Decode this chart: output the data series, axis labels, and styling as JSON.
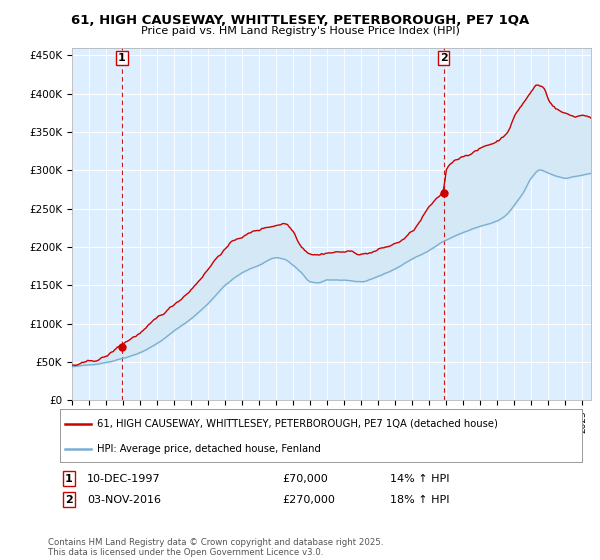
{
  "title": "61, HIGH CAUSEWAY, WHITTLESEY, PETERBOROUGH, PE7 1QA",
  "subtitle": "Price paid vs. HM Land Registry's House Price Index (HPI)",
  "ylabel_ticks": [
    "£0",
    "£50K",
    "£100K",
    "£150K",
    "£200K",
    "£250K",
    "£300K",
    "£350K",
    "£400K",
    "£450K"
  ],
  "ytick_values": [
    0,
    50000,
    100000,
    150000,
    200000,
    250000,
    300000,
    350000,
    400000,
    450000
  ],
  "ylim": [
    0,
    460000
  ],
  "xlim_start": 1995.3,
  "xlim_end": 2025.5,
  "marker1_x": 1997.94,
  "marker1_y": 70000,
  "marker1_label": "1",
  "marker2_x": 2016.84,
  "marker2_y": 270000,
  "marker2_label": "2",
  "sale1_date": "10-DEC-1997",
  "sale1_price": "£70,000",
  "sale1_hpi": "14% ↑ HPI",
  "sale2_date": "03-NOV-2016",
  "sale2_price": "£270,000",
  "sale2_hpi": "18% ↑ HPI",
  "line1_color": "#cc0000",
  "line2_color": "#7aafd4",
  "fill_color": "#d4e8f5",
  "vline_color": "#cc0000",
  "legend_line1": "61, HIGH CAUSEWAY, WHITTLESEY, PETERBOROUGH, PE7 1QA (detached house)",
  "legend_line2": "HPI: Average price, detached house, Fenland",
  "footer": "Contains HM Land Registry data © Crown copyright and database right 2025.\nThis data is licensed under the Open Government Licence v3.0.",
  "background_color": "#ffffff",
  "chart_bg_color": "#ddeeff",
  "grid_color": "#ffffff"
}
